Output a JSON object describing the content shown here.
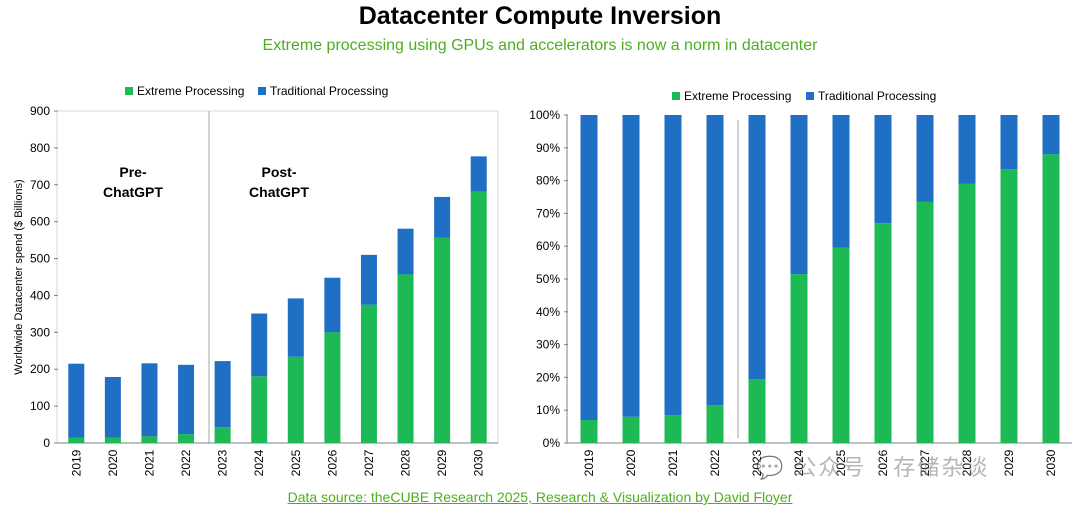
{
  "header": {
    "title": "Datacenter Compute Inversion",
    "subtitle": "Extreme processing using GPUs and accelerators is now a norm in datacenter"
  },
  "footer": {
    "source": "Data source: theCUBE Research 2025, Research & Visualization by David Floyer"
  },
  "watermark": "💬 公众号 · 存储杂谈",
  "colors": {
    "extreme": "#1DB954",
    "traditional": "#1F6FC5"
  },
  "chart_data": [
    {
      "type": "bar",
      "stacked": true,
      "title": "",
      "xlabel": "",
      "ylabel": "Worldwide Datacenter spend ($ Billions)",
      "ylim": [
        0,
        900
      ],
      "yticks": [
        "0",
        "100",
        "200",
        "300",
        "400",
        "500",
        "600",
        "700",
        "800",
        "900"
      ],
      "legend_position": "top",
      "categories": [
        "2019",
        "2020",
        "2021",
        "2022",
        "2023",
        "2024",
        "2025",
        "2026",
        "2027",
        "2028",
        "2029",
        "2030"
      ],
      "series": [
        {
          "name": "Extreme Processing",
          "values": [
            15,
            14,
            18,
            24,
            43,
            181,
            234,
            300,
            375,
            457,
            557,
            681
          ]
        },
        {
          "name": "Traditional Processing",
          "values": [
            200,
            165,
            198,
            188,
            179,
            170,
            158,
            148,
            135,
            124,
            110,
            96
          ]
        }
      ],
      "annotations": [
        {
          "lines": [
            "Pre-",
            "ChatGPT"
          ]
        },
        {
          "lines": [
            "Post-",
            "ChatGPT"
          ]
        }
      ]
    },
    {
      "type": "bar",
      "stacked": true,
      "percent": true,
      "title": "",
      "xlabel": "",
      "ylabel": "",
      "ylim": [
        0,
        100
      ],
      "yticks": [
        "0%",
        "10%",
        "20%",
        "30%",
        "40%",
        "50%",
        "60%",
        "70%",
        "80%",
        "90%",
        "100%"
      ],
      "legend_position": "top",
      "categories": [
        "2019",
        "2020",
        "2021",
        "2022",
        "2023",
        "2024",
        "2025",
        "2026",
        "2027",
        "2028",
        "2029",
        "2030"
      ],
      "series": [
        {
          "name": "Extreme Processing",
          "values": [
            7,
            8,
            8.5,
            11.5,
            19.5,
            51.5,
            59.5,
            67,
            73.5,
            79,
            83.5,
            88
          ]
        },
        {
          "name": "Traditional Processing",
          "values": [
            93,
            92,
            91.5,
            88.5,
            80.5,
            48.5,
            40.5,
            33,
            26.5,
            21,
            16.5,
            12
          ]
        }
      ]
    }
  ]
}
